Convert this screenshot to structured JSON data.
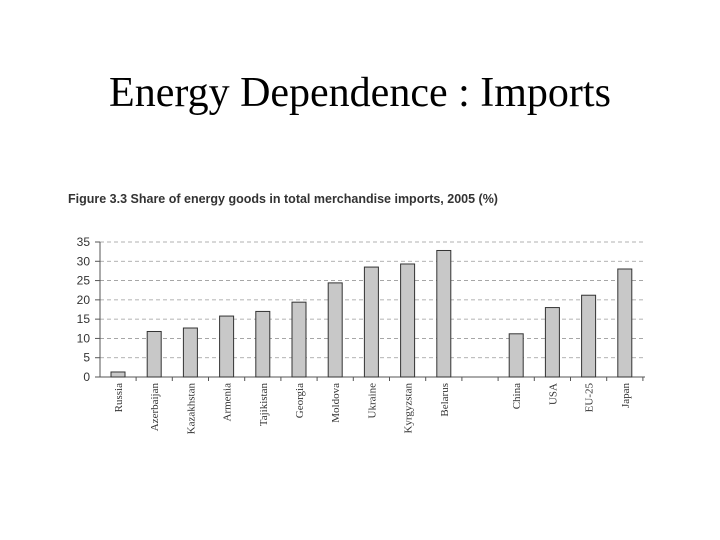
{
  "slide": {
    "title": "Energy Dependence : Imports"
  },
  "chart_data": {
    "type": "bar",
    "title": "Figure 3.3 Share of energy goods in total merchandise imports, 2005 (%)",
    "xlabel": "",
    "ylabel": "",
    "ylim": [
      0,
      35
    ],
    "yticks": [
      0,
      5,
      10,
      15,
      20,
      25,
      30,
      35
    ],
    "grid": true,
    "categories": [
      "Russia",
      "Azerbaijan",
      "Kazakhstan",
      "Armenia",
      "Tajikistan",
      "Georgia",
      "Moldova",
      "Ukraine",
      "Kyrgyzstan",
      "Belarus",
      "",
      "China",
      "USA",
      "EU-25",
      "Japan"
    ],
    "values": [
      1.3,
      11.8,
      12.7,
      15.8,
      17.0,
      19.4,
      24.4,
      28.5,
      29.3,
      32.8,
      null,
      11.2,
      18.0,
      21.2,
      28.0
    ],
    "colors": {
      "bar_fill": "#c8c8c8",
      "bar_stroke": "#333333",
      "grid": "#999999",
      "axis": "#555555",
      "text": "#333333"
    }
  }
}
